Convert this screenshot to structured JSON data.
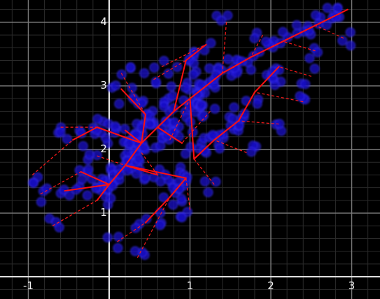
{
  "chart_data": {
    "type": "scatter",
    "title": "",
    "xlabel": "",
    "ylabel": "",
    "xlim": [
      -1.35,
      3.35
    ],
    "ylim": [
      -0.35,
      4.35
    ],
    "grid": true,
    "x_ticks": [
      {
        "value": -1,
        "label": "-1"
      },
      {
        "value": 1,
        "label": "1"
      },
      {
        "value": 2,
        "label": "2"
      },
      {
        "value": 3,
        "label": "3"
      }
    ],
    "y_ticks": [
      {
        "value": 1,
        "label": "1"
      },
      {
        "value": 2,
        "label": "2"
      },
      {
        "value": 3,
        "label": "3"
      },
      {
        "value": 4,
        "label": "4"
      }
    ],
    "branch_nodes": [
      [
        -0.15,
        1.2
      ],
      [
        0.0,
        1.45
      ],
      [
        0.2,
        1.75
      ],
      [
        0.4,
        2.1
      ],
      [
        0.6,
        2.35
      ],
      [
        0.8,
        2.6
      ],
      [
        1.0,
        2.8
      ],
      [
        1.2,
        3.0
      ],
      [
        1.4,
        3.2
      ],
      [
        1.75,
        3.45
      ],
      [
        2.15,
        3.7
      ],
      [
        2.55,
        3.95
      ],
      [
        2.95,
        4.2
      ],
      [
        0.15,
        2.95
      ],
      [
        0.45,
        2.55
      ],
      [
        0.95,
        3.4
      ],
      [
        1.2,
        3.65
      ],
      [
        1.05,
        1.85
      ],
      [
        1.3,
        2.15
      ],
      [
        1.6,
        2.45
      ],
      [
        1.8,
        2.9
      ],
      [
        2.1,
        3.3
      ],
      [
        0.45,
        0.85
      ],
      [
        0.75,
        1.25
      ],
      [
        0.95,
        1.55
      ],
      [
        -0.55,
        1.35
      ],
      [
        -0.35,
        1.65
      ],
      [
        -0.45,
        2.15
      ],
      [
        -0.15,
        2.35
      ],
      [
        0.2,
        2.3
      ],
      [
        0.9,
        2.1
      ],
      [
        0.6,
        1.6
      ]
    ],
    "branch_edges": [
      [
        0,
        1
      ],
      [
        1,
        2
      ],
      [
        2,
        3
      ],
      [
        3,
        4
      ],
      [
        4,
        5
      ],
      [
        5,
        6
      ],
      [
        6,
        7
      ],
      [
        7,
        8
      ],
      [
        8,
        9
      ],
      [
        9,
        10
      ],
      [
        10,
        11
      ],
      [
        11,
        12
      ],
      [
        3,
        14
      ],
      [
        14,
        13
      ],
      [
        5,
        15
      ],
      [
        15,
        16
      ],
      [
        6,
        17
      ],
      [
        17,
        18
      ],
      [
        18,
        19
      ],
      [
        19,
        20
      ],
      [
        20,
        21
      ],
      [
        2,
        24
      ],
      [
        24,
        23
      ],
      [
        23,
        22
      ],
      [
        1,
        25
      ],
      [
        1,
        26
      ],
      [
        3,
        28
      ],
      [
        28,
        27
      ],
      [
        3,
        29
      ],
      [
        4,
        30
      ],
      [
        2,
        31
      ]
    ],
    "dashed_edges": [
      [
        -0.85,
        1.3,
        -0.35,
        1.65
      ],
      [
        -0.7,
        0.8,
        -0.15,
        1.2
      ],
      [
        -0.95,
        1.6,
        -0.45,
        2.15
      ],
      [
        -0.6,
        2.35,
        -0.15,
        2.35
      ],
      [
        0.1,
        0.55,
        0.45,
        0.85
      ],
      [
        0.35,
        0.3,
        0.75,
        1.25
      ],
      [
        1.0,
        1.05,
        0.95,
        1.55
      ],
      [
        1.3,
        1.45,
        1.05,
        1.85
      ],
      [
        1.7,
        1.95,
        1.3,
        2.15
      ],
      [
        2.1,
        2.4,
        1.6,
        2.45
      ],
      [
        2.4,
        2.75,
        1.8,
        2.9
      ],
      [
        2.5,
        3.15,
        2.1,
        3.3
      ],
      [
        2.55,
        3.55,
        2.15,
        3.7
      ],
      [
        2.9,
        3.75,
        2.55,
        3.95
      ],
      [
        1.9,
        3.8,
        1.75,
        3.45
      ],
      [
        1.45,
        4.0,
        1.4,
        3.2
      ],
      [
        0.55,
        3.1,
        0.95,
        3.4
      ],
      [
        0.15,
        3.2,
        0.45,
        2.55
      ],
      [
        -0.15,
        1.9,
        0.2,
        1.75
      ],
      [
        0.4,
        1.95,
        0.6,
        1.6
      ],
      [
        1.25,
        2.6,
        0.9,
        2.1
      ],
      [
        0.65,
        3.3,
        1.2,
        3.65
      ],
      [
        0.75,
        2.15,
        1.0,
        2.8
      ],
      [
        1.55,
        3.3,
        1.4,
        3.2
      ]
    ]
  }
}
